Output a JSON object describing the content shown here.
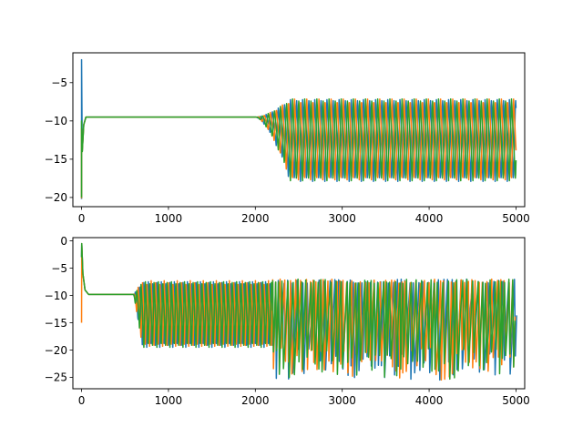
{
  "chart_data": [
    {
      "type": "line",
      "title": "",
      "xlabel": "",
      "ylabel": "",
      "xlim": [
        -100,
        5100
      ],
      "ylim": [
        -21.2,
        -1.1
      ],
      "xticks": [
        0,
        1000,
        2000,
        3000,
        4000,
        5000
      ],
      "xtick_labels": [
        "0",
        "1000",
        "2000",
        "3000",
        "4000",
        "5000"
      ],
      "yticks": [
        -5,
        -10,
        -15,
        -20
      ],
      "ytick_labels": [
        "−5",
        "−10",
        "−15",
        "−20"
      ],
      "grid": false,
      "legend": "none",
      "series_colors": [
        "#1f77b4",
        "#ff7f0e",
        "#2ca02c"
      ],
      "features": {
        "initial_spike_x": 0,
        "initial_spike_y": [
          -2,
          -20.2
        ],
        "steady_value": -9.5,
        "steady_range_x": [
          50,
          2000
        ],
        "oscillation_onset_x": [
          2000,
          2400
        ],
        "oscillation_range_y": [
          -17.9,
          -7.0
        ],
        "oscillation_period": 70,
        "x_end": 5000
      }
    },
    {
      "type": "line",
      "title": "",
      "xlabel": "",
      "ylabel": "",
      "xlim": [
        -100,
        5100
      ],
      "ylim": [
        -27.1,
        0.6
      ],
      "xticks": [
        0,
        1000,
        2000,
        3000,
        4000,
        5000
      ],
      "xtick_labels": [
        "0",
        "1000",
        "2000",
        "3000",
        "4000",
        "5000"
      ],
      "yticks": [
        0,
        -5,
        -10,
        -15,
        -20,
        -25
      ],
      "ytick_labels": [
        "0",
        "−5",
        "−10",
        "−15",
        "−20",
        "−25"
      ],
      "grid": false,
      "legend": "none",
      "series_colors": [
        "#1f77b4",
        "#ff7f0e",
        "#2ca02c"
      ],
      "features": {
        "initial_spike_x": 0,
        "initial_spike_y": [
          -0.5,
          -15
        ],
        "steady_value": -9.8,
        "steady_range_x": [
          80,
          600
        ],
        "regular_oscillation_x": [
          600,
          2200
        ],
        "regular_oscillation_range_y": [
          -19.5,
          -7.3
        ],
        "regular_oscillation_period": 50,
        "irregular_oscillation_x": [
          2200,
          5000
        ],
        "irregular_oscillation_range_y": [
          -25.5,
          -7.0
        ],
        "x_end": 5000
      }
    }
  ]
}
